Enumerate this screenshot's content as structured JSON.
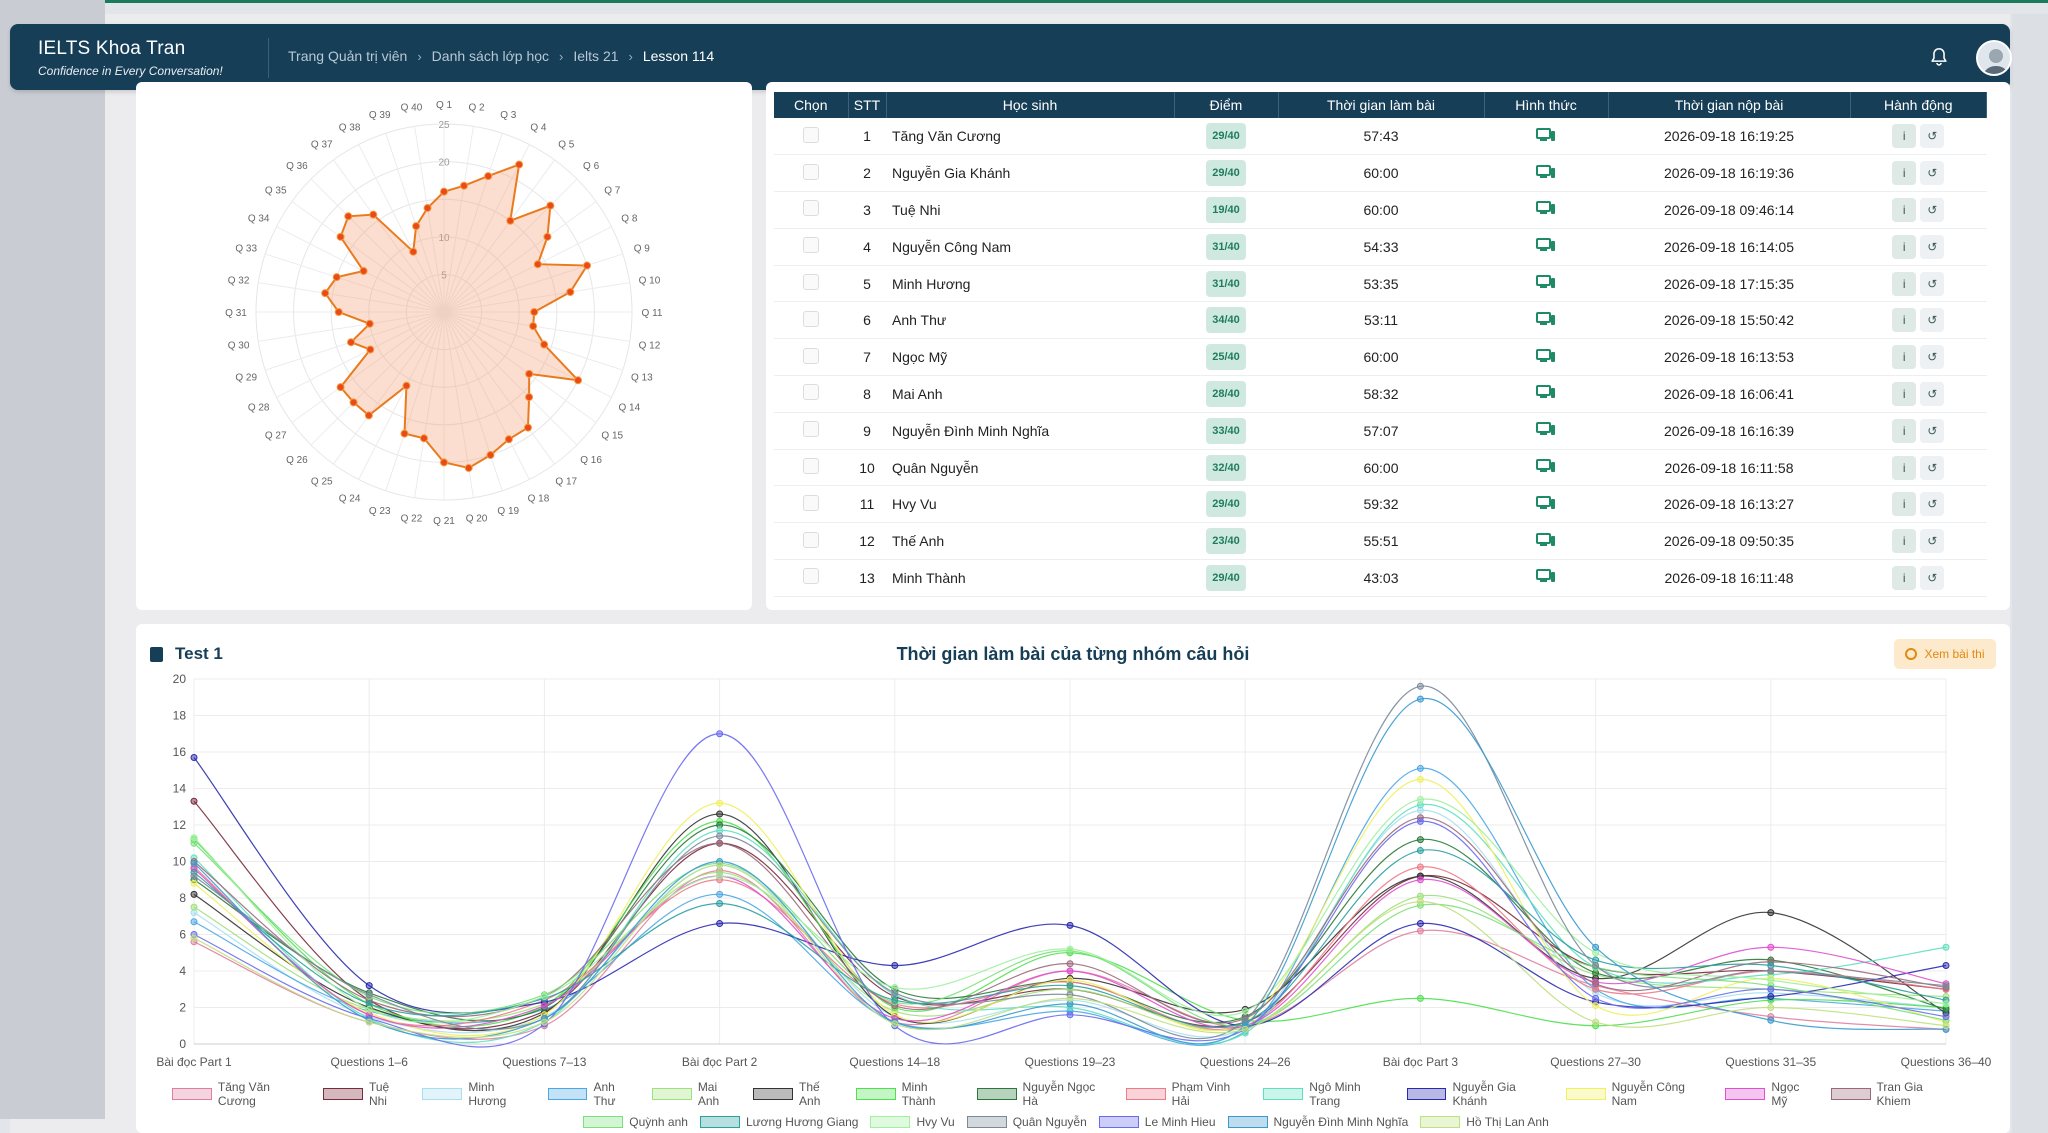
{
  "header": {
    "brand_title": "IELTS Khoa Tran",
    "brand_subtitle": "Confidence in Every Conversation!",
    "breadcrumbs": [
      "Trang Quản trị viên",
      "Danh sách lớp học",
      "Ielts 21",
      "Lesson 114"
    ]
  },
  "radar": {
    "labels": [
      "Q 1",
      "Q 2",
      "Q 3",
      "Q 4",
      "Q 5",
      "Q 6",
      "Q 7",
      "Q 8",
      "Q 9",
      "Q 10",
      "Q 11",
      "Q 12",
      "Q 13",
      "Q 14",
      "Q 15",
      "Q 16",
      "Q 17",
      "Q 18",
      "Q 19",
      "Q 20",
      "Q 21",
      "Q 22",
      "Q 23",
      "Q 24",
      "Q 25",
      "Q 26",
      "Q 27",
      "Q 28",
      "Q 29",
      "Q 30",
      "Q 31",
      "Q 32",
      "Q 33",
      "Q 34",
      "Q 35",
      "Q 36",
      "Q 37",
      "Q 38",
      "Q 39",
      "Q 40"
    ],
    "values": [
      16,
      17,
      19,
      22,
      15,
      20,
      17,
      14,
      20,
      17,
      12,
      12,
      14,
      20,
      14,
      16,
      19,
      19,
      20,
      21,
      20,
      17,
      17,
      11,
      17,
      17,
      17,
      11,
      13,
      10,
      14,
      16,
      15,
      12,
      17,
      18,
      16,
      9,
      12,
      14
    ],
    "ticks": [
      "5",
      "10",
      "20",
      "25"
    ],
    "max": 25
  },
  "table": {
    "columns": [
      "Chọn",
      "STT",
      "Học sinh",
      "Điểm",
      "Thời gian làm bài",
      "Hình thức",
      "Thời gian nộp bài",
      "Hành động"
    ],
    "rows": [
      {
        "stt": "1",
        "name": "Tăng Văn Cương",
        "score": "29/40",
        "duration": "57:43",
        "submitted": "2026-09-18 16:19:25"
      },
      {
        "stt": "2",
        "name": "Nguyễn Gia Khánh",
        "score": "29/40",
        "duration": "60:00",
        "submitted": "2026-09-18 16:19:36"
      },
      {
        "stt": "3",
        "name": "Tuệ Nhi",
        "score": "19/40",
        "duration": "60:00",
        "submitted": "2026-09-18 09:46:14"
      },
      {
        "stt": "4",
        "name": "Nguyễn Công Nam",
        "score": "31/40",
        "duration": "54:33",
        "submitted": "2026-09-18 16:14:05"
      },
      {
        "stt": "5",
        "name": "Minh Hương",
        "score": "31/40",
        "duration": "53:35",
        "submitted": "2026-09-18 17:15:35"
      },
      {
        "stt": "6",
        "name": "Anh Thư",
        "score": "34/40",
        "duration": "53:11",
        "submitted": "2026-09-18 15:50:42"
      },
      {
        "stt": "7",
        "name": "Ngọc Mỹ",
        "score": "25/40",
        "duration": "60:00",
        "submitted": "2026-09-18 16:13:53"
      },
      {
        "stt": "8",
        "name": "Mai Anh",
        "score": "28/40",
        "duration": "58:32",
        "submitted": "2026-09-18 16:06:41"
      },
      {
        "stt": "9",
        "name": "Nguyễn Đình Minh Nghĩa",
        "score": "33/40",
        "duration": "57:07",
        "submitted": "2026-09-18 16:16:39"
      },
      {
        "stt": "10",
        "name": "Quân Nguyễn",
        "score": "32/40",
        "duration": "60:00",
        "submitted": "2026-09-18 16:11:58"
      },
      {
        "stt": "11",
        "name": "Hvy Vu",
        "score": "29/40",
        "duration": "59:32",
        "submitted": "2026-09-18 16:13:27"
      },
      {
        "stt": "12",
        "name": "Thế Anh",
        "score": "23/40",
        "duration": "55:51",
        "submitted": "2026-09-18 09:50:35"
      },
      {
        "stt": "13",
        "name": "Minh Thành",
        "score": "29/40",
        "duration": "43:03",
        "submitted": "2026-09-18 16:11:48"
      }
    ]
  },
  "bottom": {
    "test_label": "Test 1",
    "chart_title": "Thời gian làm bài của từng nhóm câu hỏi",
    "view_button": "Xem bài thi"
  },
  "chart_data": {
    "type": "line",
    "title": "Thời gian làm bài của từng nhóm câu hỏi",
    "categories": [
      "Bài đọc Part  1",
      "Questions 1–6",
      "Questions 7–13",
      "Bài đọc Part  2",
      "Questions 14–18",
      "Questions 19–23",
      "Questions 24–26",
      "Bài đọc Part 3",
      "Questions 27–30",
      "Questions 31–35",
      "Questions 36–40"
    ],
    "ylim": [
      0,
      20
    ],
    "yticks": [
      "0",
      "2",
      "4",
      "6",
      "8",
      "10",
      "12",
      "14",
      "16",
      "18",
      "20"
    ],
    "series": [
      {
        "name": "Tăng Văn Cương",
        "color": "#e27fa0",
        "values": [
          5.6,
          1.2,
          1.0,
          9.5,
          1.2,
          4.0,
          1.0,
          6.2,
          3.2,
          1.5,
          0.8
        ]
      },
      {
        "name": "Tuệ Nhi",
        "color": "#7a2a3a",
        "values": [
          13.3,
          2.4,
          1.8,
          11.0,
          2.6,
          3.0,
          1.2,
          9.2,
          4.2,
          4.0,
          3.0
        ]
      },
      {
        "name": "Minh Hương",
        "color": "#a8dff0",
        "values": [
          7.2,
          1.5,
          1.5,
          9.8,
          1.5,
          2.4,
          0.9,
          12.8,
          2.8,
          2.8,
          2.0
        ]
      },
      {
        "name": "Anh Thư",
        "color": "#4aa8e6",
        "values": [
          6.7,
          1.8,
          1.9,
          8.2,
          1.2,
          1.8,
          0.7,
          15.1,
          3.0,
          2.5,
          1.8
        ]
      },
      {
        "name": "Mai Anh",
        "color": "#9ee07a",
        "values": [
          7.5,
          1.9,
          2.2,
          9.4,
          1.8,
          3.0,
          0.9,
          8.1,
          3.8,
          3.0,
          2.6
        ]
      },
      {
        "name": "Thế Anh",
        "color": "#333333",
        "values": [
          8.2,
          2.0,
          1.7,
          12.6,
          1.5,
          3.6,
          1.9,
          9.2,
          3.6,
          7.2,
          1.7
        ]
      },
      {
        "name": "Minh Thành",
        "color": "#4fe04f",
        "values": [
          11.2,
          2.2,
          2.1,
          12.2,
          2.0,
          5.0,
          1.3,
          2.5,
          1.0,
          2.4,
          2.0
        ]
      },
      {
        "name": "Nguyễn Ngọc Hà",
        "color": "#2a7a3a",
        "values": [
          9.0,
          2.8,
          2.0,
          12.0,
          3.0,
          3.4,
          1.5,
          11.2,
          3.9,
          4.6,
          1.9
        ]
      },
      {
        "name": "Phạm Vinh Hải",
        "color": "#f07a8a",
        "values": [
          9.7,
          1.6,
          2.4,
          9.0,
          2.2,
          3.4,
          1.0,
          9.7,
          3.0,
          4.0,
          3.0
        ]
      },
      {
        "name": "Ngô Minh Trang",
        "color": "#5ee0c0",
        "values": [
          10.2,
          1.4,
          1.2,
          11.7,
          2.7,
          2.0,
          0.6,
          13.1,
          4.2,
          3.8,
          5.3
        ]
      },
      {
        "name": "Nguyễn Gia Khánh",
        "color": "#2a2ab0",
        "values": [
          15.7,
          3.2,
          2.3,
          6.6,
          4.3,
          6.5,
          1.0,
          6.6,
          2.3,
          2.6,
          4.3
        ]
      },
      {
        "name": "Nguyễn Công Nam",
        "color": "#f0f060",
        "values": [
          8.8,
          1.7,
          1.6,
          13.2,
          1.6,
          3.5,
          1.2,
          14.5,
          2.1,
          3.6,
          1.2
        ]
      },
      {
        "name": "Ngọc Mỹ",
        "color": "#e050d0",
        "values": [
          9.6,
          1.6,
          2.1,
          9.2,
          1.4,
          4.0,
          1.0,
          9.0,
          3.4,
          5.3,
          3.3
        ]
      },
      {
        "name": "Tran Gia Khiem",
        "color": "#9a6a7a",
        "values": [
          10.0,
          2.4,
          2.6,
          11.0,
          2.1,
          4.4,
          1.4,
          12.4,
          3.3,
          4.5,
          3.1
        ]
      },
      {
        "name": "Quỳnh anh",
        "color": "#7ae07a",
        "values": [
          11.0,
          2.6,
          2.7,
          9.9,
          2.3,
          5.1,
          1.0,
          7.6,
          4.2,
          3.2,
          1.3
        ]
      },
      {
        "name": "Lương Hương Giang",
        "color": "#2aa0a0",
        "values": [
          9.4,
          2.2,
          2.5,
          7.7,
          2.4,
          3.2,
          1.2,
          10.6,
          4.6,
          4.3,
          2.4
        ]
      },
      {
        "name": "Hvy Vu",
        "color": "#a0f0a0",
        "values": [
          11.3,
          1.9,
          2.6,
          9.2,
          3.1,
          5.2,
          1.8,
          13.4,
          5.0,
          3.5,
          2.2
        ]
      },
      {
        "name": "Quân Nguyễn",
        "color": "#7a8a9a",
        "values": [
          9.2,
          2.7,
          1.4,
          11.4,
          2.8,
          2.7,
          1.3,
          19.6,
          4.3,
          4.0,
          3.2
        ]
      },
      {
        "name": "Le Minh Hieu",
        "color": "#6a6af0",
        "values": [
          6.0,
          1.4,
          1.1,
          17.0,
          1.0,
          1.6,
          0.8,
          12.2,
          2.5,
          3.0,
          1.5
        ]
      },
      {
        "name": "Nguyễn Đình Minh Nghĩa",
        "color": "#3a9ad0",
        "values": [
          9.9,
          1.3,
          1.4,
          10.0,
          1.2,
          2.2,
          1.0,
          18.9,
          5.3,
          1.3,
          0.8
        ]
      },
      {
        "name": "Hồ Thị Lan Anh",
        "color": "#c0e080",
        "values": [
          5.8,
          1.2,
          1.2,
          9.8,
          1.1,
          2.5,
          0.8,
          7.8,
          1.2,
          2.0,
          1.0
        ]
      }
    ]
  }
}
